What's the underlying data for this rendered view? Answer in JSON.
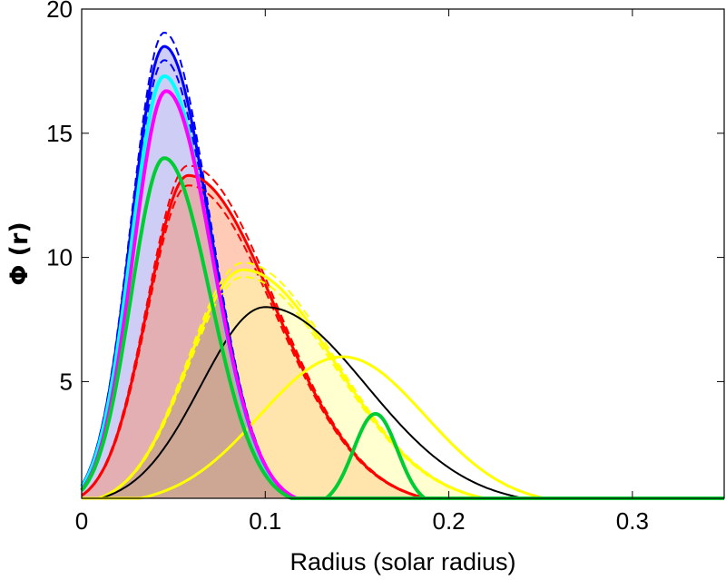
{
  "chart_data": {
    "type": "area",
    "title": "",
    "xlabel": "Radius (solar radius)",
    "ylabel": "Φ (r)",
    "xlim": [
      0,
      0.35
    ],
    "ylim": [
      0.3,
      20
    ],
    "xticks": [
      0,
      0.1,
      0.2,
      0.3
    ],
    "xtick_labels": [
      "0",
      "0.1",
      "0.2",
      "0.3"
    ],
    "yticks": [
      5,
      10,
      15,
      20
    ],
    "ytick_labels": [
      "5",
      "10",
      "15",
      "20"
    ],
    "grid": false,
    "legend": "none",
    "series": [
      {
        "color": "#0000ff",
        "fill": "#c8c8f5",
        "fill_opacity": 0.9,
        "stroke_width": 3,
        "dashed_band": true,
        "peak_x": 0.045,
        "peak_y": 18.5,
        "sigma_left": 0.018,
        "sigma_right": 0.025
      },
      {
        "color": "#ff0000",
        "fill": "#ff8c60",
        "fill_opacity": 0.45,
        "stroke_width": 3,
        "dashed_band": true,
        "peak_x": 0.058,
        "peak_y": 13.3,
        "sigma_left": 0.022,
        "sigma_right": 0.047
      },
      {
        "color": "#ffff00",
        "fill": "#ffffa0",
        "fill_opacity": 0.5,
        "stroke_width": 3,
        "dashed_band": true,
        "peak_x": 0.088,
        "peak_y": 9.5,
        "sigma_left": 0.03,
        "sigma_right": 0.05
      },
      {
        "color": "#000000",
        "fill": "none",
        "fill_opacity": 0,
        "stroke_width": 2,
        "dashed_band": false,
        "peak_x": 0.1,
        "peak_y": 8.0,
        "sigma_left": 0.035,
        "sigma_right": 0.055
      },
      {
        "color": "#ffff00",
        "fill": "none",
        "fill_opacity": 0,
        "stroke_width": 3,
        "dashed_band": false,
        "peak_x": 0.142,
        "peak_y": 6.0,
        "sigma_left": 0.045,
        "sigma_right": 0.045
      },
      {
        "color": "#00ffff",
        "fill": "none",
        "fill_opacity": 0,
        "stroke_width": 4,
        "dashed_band": false,
        "peak_x": 0.045,
        "peak_y": 17.3,
        "sigma_left": 0.018,
        "sigma_right": 0.025
      },
      {
        "color": "#ff00ff",
        "fill": "none",
        "fill_opacity": 0,
        "stroke_width": 4,
        "dashed_band": false,
        "peak_x": 0.046,
        "peak_y": 16.7,
        "sigma_left": 0.018,
        "sigma_right": 0.025
      },
      {
        "color": "#00cc33",
        "fill": "none",
        "fill_opacity": 0,
        "stroke_width": 4,
        "dashed_band": false,
        "peak_x": 0.045,
        "peak_y": 14.0,
        "sigma_left": 0.018,
        "sigma_right": 0.025
      },
      {
        "color": "#00cc33",
        "fill": "none",
        "fill_opacity": 0,
        "stroke_width": 4,
        "dashed_band": false,
        "peak_x": 0.16,
        "peak_y": 3.7,
        "sigma_left": 0.012,
        "sigma_right": 0.012,
        "x_start": 0.128,
        "x_end": 0.198
      }
    ],
    "shaded_overlap": {
      "color": "#8b4a6e",
      "fill_opacity": 0.35
    }
  }
}
